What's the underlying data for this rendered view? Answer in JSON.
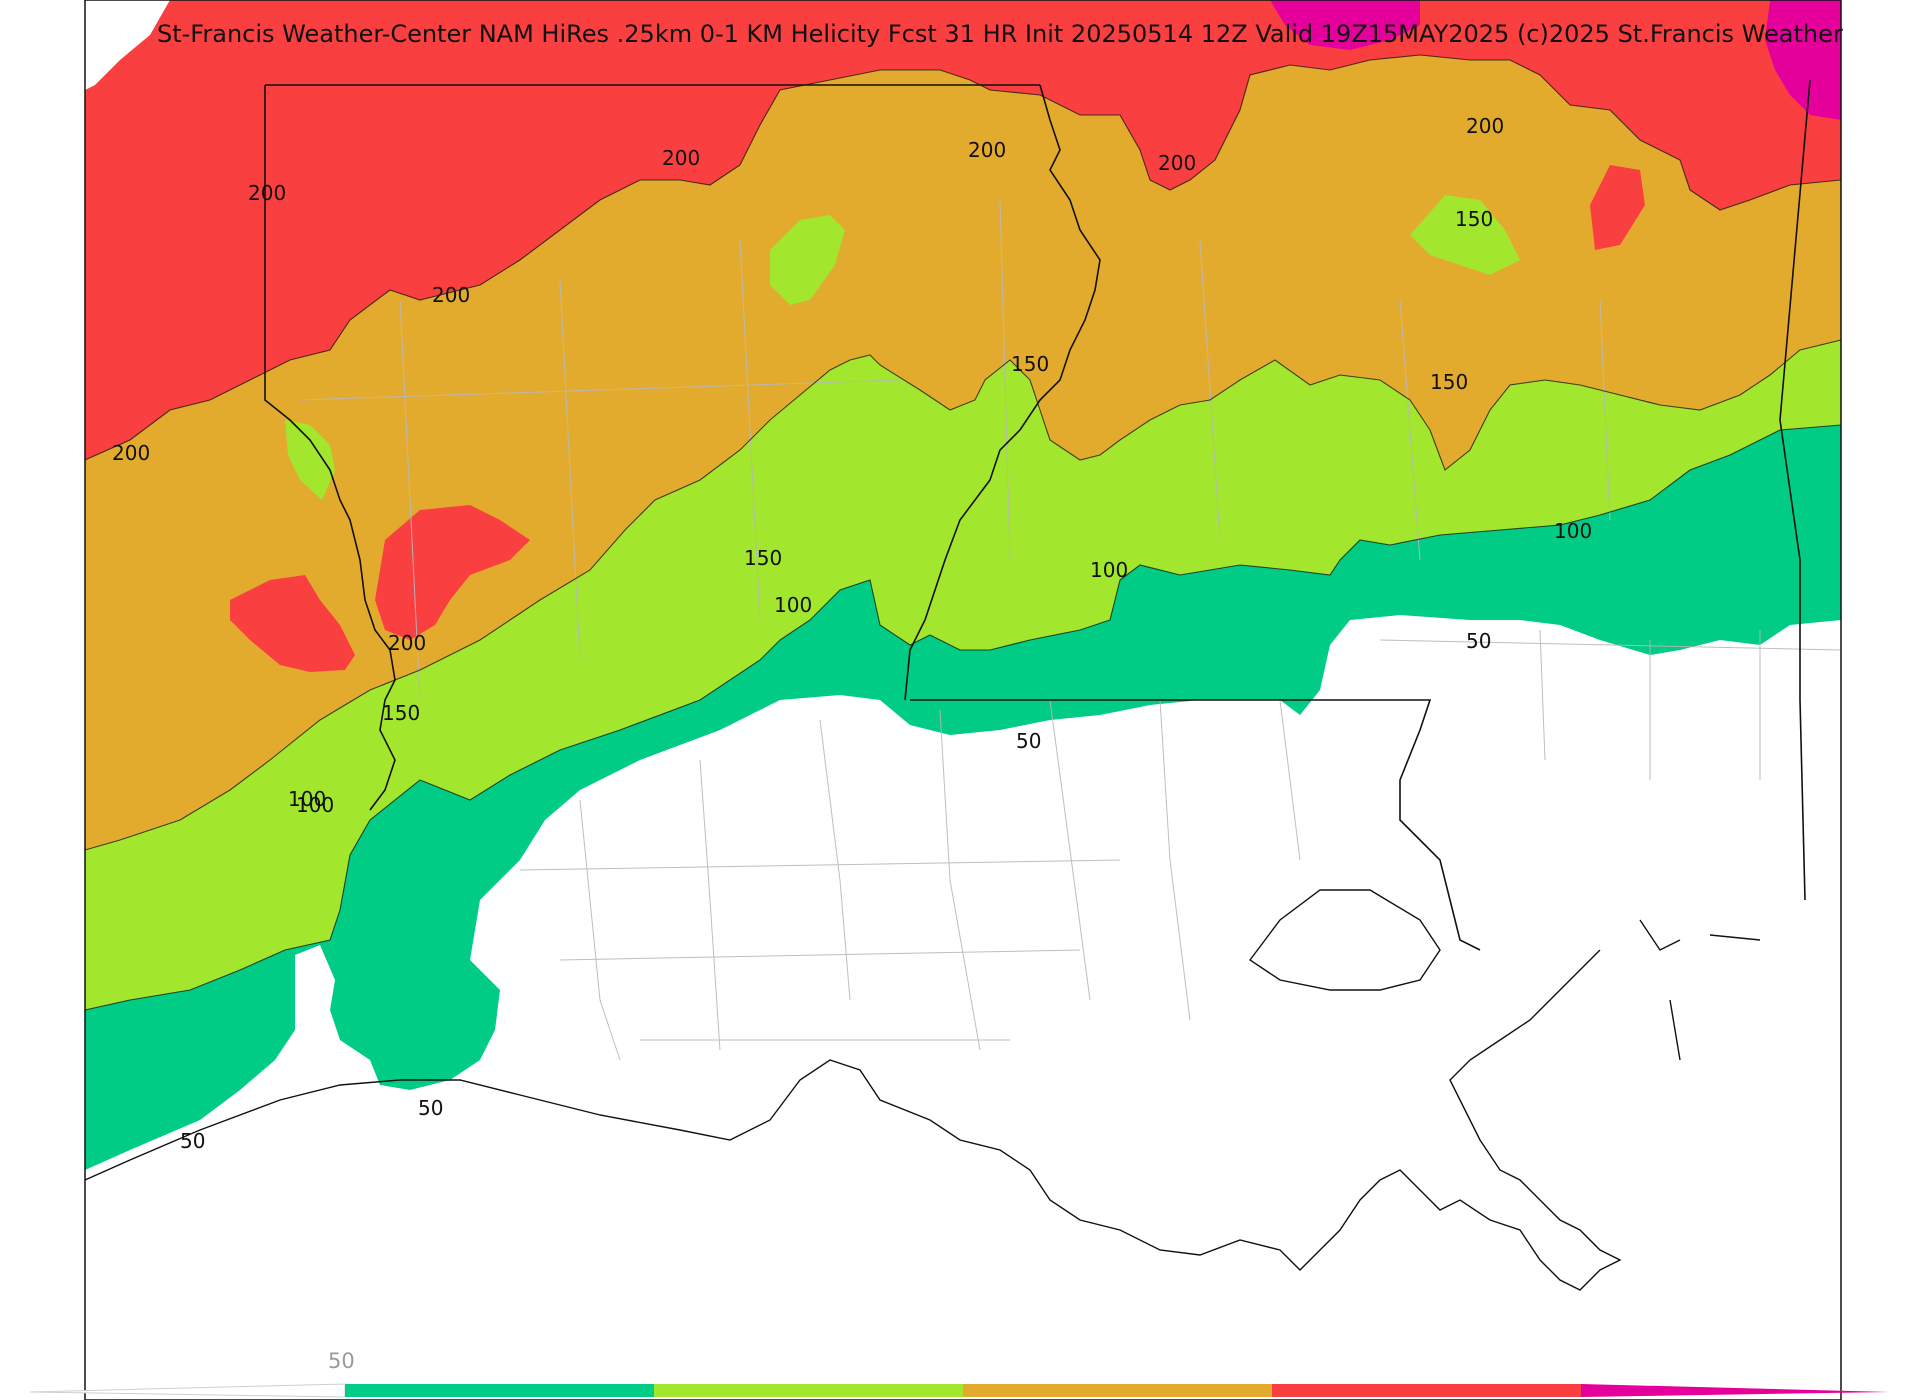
{
  "title": "St-Francis Weather-Center NAM HiRes .25km 0-1 KM Helicity Fcst 31 HR Init 20250514 12Z  Valid 19Z15MAY2025    (c)2025 St.Francis Weather",
  "colors": {
    "band_below_50": "#ffffff",
    "band_50_100": "#00cc85",
    "band_100_150": "#a2e62e",
    "band_150_200": "#e3ab2e",
    "band_200_250": "#f93f3f",
    "band_250_plus": "#e5009b",
    "border": "#111111",
    "county_lines": "#b8b8b8"
  },
  "contour_labels": [
    "200",
    "200",
    "200",
    "200",
    "200",
    "200",
    "200",
    "200",
    "150",
    "150",
    "150",
    "150",
    "150",
    "100",
    "100",
    "100",
    "100",
    "100",
    "50",
    "50",
    "50",
    "50"
  ],
  "colorbar": {
    "levels": [
      50,
      100,
      150,
      200,
      250
    ],
    "tick_label": "50",
    "colors": [
      "#00cc85",
      "#a2e62e",
      "#e3ab2e",
      "#f93f3f",
      "#e5009b"
    ]
  }
}
